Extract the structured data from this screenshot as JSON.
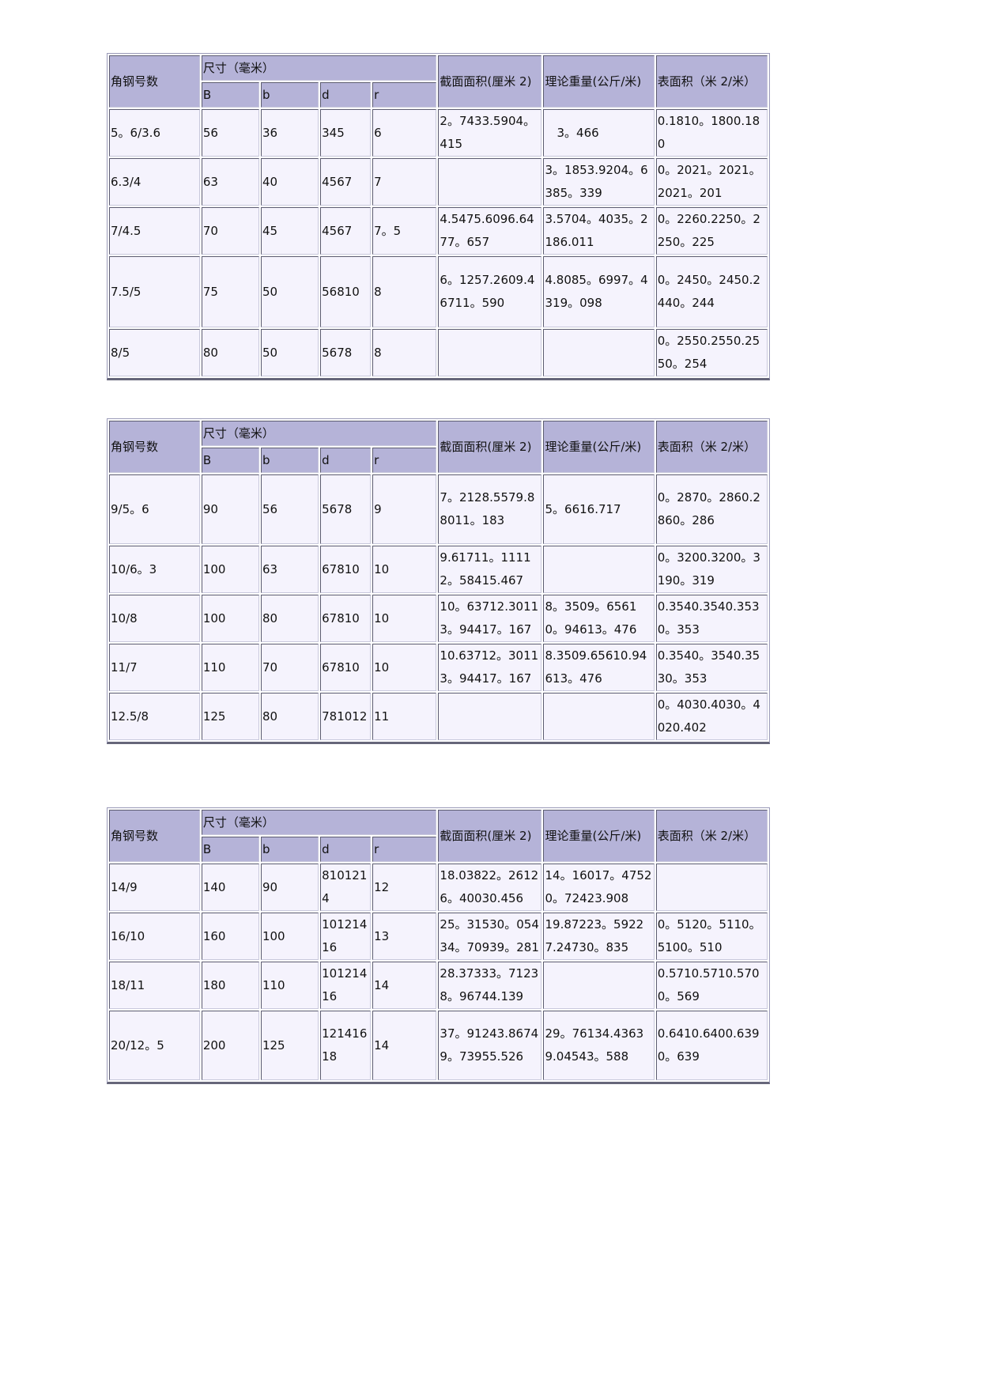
{
  "header": {
    "col_no": "角钢号数",
    "size_group": "尺寸（毫米）",
    "sub": [
      "B",
      "b",
      "d",
      "r"
    ],
    "area": "截面面积(厘米 2)",
    "weight": "理论重量(公斤/米)",
    "surface": "表面积（米 2/米）"
  },
  "tables": [
    {
      "rows": [
        [
          "5。6/3.6",
          "56",
          "36",
          "345",
          "6",
          "2。7433.5904。415",
          "　3。466",
          "0.1810。1800.180"
        ],
        [
          "6.3/4",
          "63",
          "40",
          "4567",
          "7",
          "",
          "3。1853.9204。6385。339",
          "0。2021。2021。2021。201"
        ],
        [
          "7/4.5",
          "70",
          "45",
          "4567",
          "7。5",
          "4.5475.6096.6477。657",
          "3.5704。4035。2186.011",
          "0。2260.2250。2250。225"
        ],
        [
          "7.5/5",
          "75",
          "50",
          "56810",
          "8",
          "6。1257.2609.46711。590",
          "4.8085。6997。4319。098",
          "0。2450。2450.2440。244"
        ],
        [
          "8/5",
          "80",
          "50",
          "5678",
          "8",
          "",
          "",
          "0。2550.2550.2550。254"
        ]
      ]
    },
    {
      "rows": [
        [
          "9/5。6",
          "90",
          "56",
          "5678",
          "9",
          "7。2128.5579.88011。183",
          "5。6616.717",
          "0。2870。2860.2860。286"
        ],
        [
          "10/6。3",
          "100",
          "63",
          "67810",
          "10",
          "9.61711。11112。58415.467",
          "",
          "0。3200.3200。3190。319"
        ],
        [
          "10/8",
          "100",
          "80",
          "67810",
          "10",
          "10。63712.30113。94417。167",
          "8。3509。65610。94613。476",
          "0.3540.3540.3530。353"
        ],
        [
          "11/7",
          "110",
          "70",
          "67810",
          "10",
          "10.63712。30113。94417。167",
          "8.3509.65610.94613。476",
          "0.3540。3540.3530。353"
        ],
        [
          "12.5/8",
          "125",
          "80",
          "781012",
          "11",
          "",
          "",
          "0。4030.4030。4020.402"
        ]
      ]
    },
    {
      "rows": [
        [
          "14/9",
          "140",
          "90",
          "8101214",
          "12",
          "18.03822。26126。40030.456",
          "14。16017。47520。72423.908",
          ""
        ],
        [
          "16/10",
          "160",
          "100",
          "10121416",
          "13",
          "25。31530。05434。70939。281",
          "19.87223。59227.24730。835",
          "0。5120。5110。5100。510"
        ],
        [
          "18/11",
          "180",
          "110",
          "10121416",
          "14",
          "28.37333。71238。96744.139",
          "",
          "0.5710.5710.5700。569"
        ],
        [
          "20/12。5",
          "200",
          "125",
          "12141618",
          "14",
          "37。91243.86749。73955.526",
          "29。76134.43639.04543。588",
          "0.6410.6400.6390。639"
        ]
      ]
    }
  ]
}
